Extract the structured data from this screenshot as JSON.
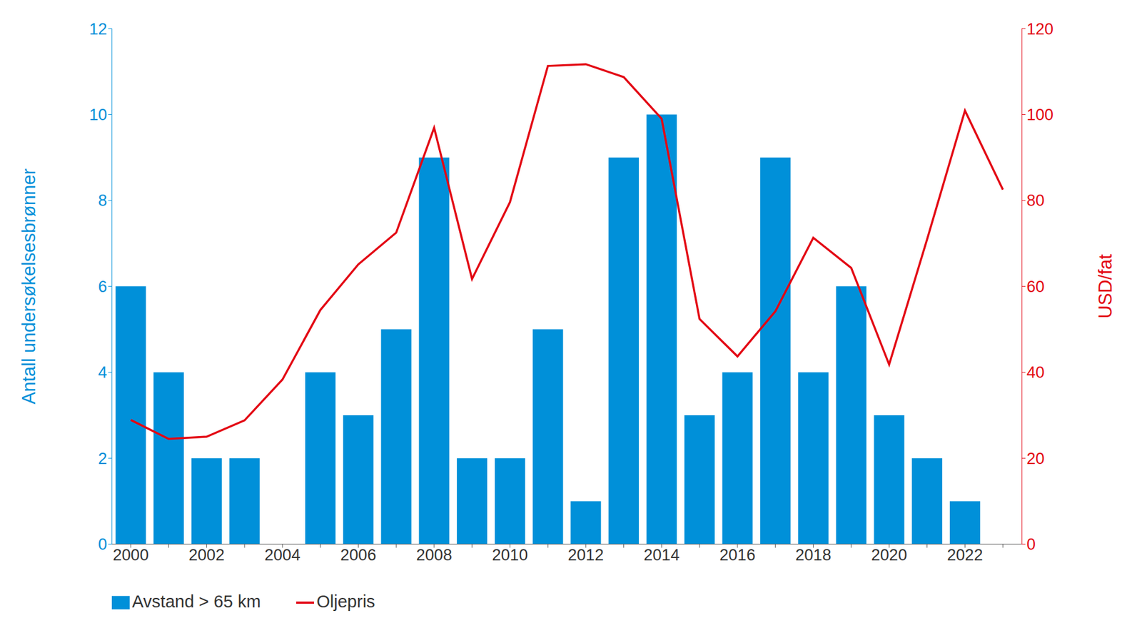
{
  "chart_data": {
    "type": "bar",
    "categories": [
      "2000",
      null,
      "2002",
      null,
      "2004",
      null,
      "2006",
      null,
      "2008",
      null,
      "2010",
      null,
      "2012",
      null,
      "2014",
      null,
      "2016",
      null,
      "2018",
      null,
      "2020",
      null,
      "2022",
      null
    ],
    "y_label": "Antall undersøkelsesbrønner",
    "y2_label": "USD/fat",
    "ylim": [
      0,
      12
    ],
    "yticks": [
      0,
      2,
      4,
      6,
      8,
      10,
      12
    ],
    "y2lim": [
      0,
      120
    ],
    "y2ticks": [
      0,
      20,
      40,
      60,
      80,
      100,
      120
    ],
    "grid": false,
    "legend": "bottom left",
    "series": [
      {
        "name": "Avstand > 65 km",
        "type": "bar",
        "color": "#0090d9",
        "values": [
          6,
          4,
          2,
          2,
          0,
          4,
          3,
          5,
          9,
          2,
          2,
          5,
          1,
          9,
          10,
          3,
          4,
          9,
          4,
          6,
          3,
          2,
          1,
          null
        ]
      },
      {
        "name": "Oljepris",
        "type": "line",
        "axis": "y2",
        "color": "#e30613",
        "values": [
          28.9,
          24.5,
          25.0,
          28.8,
          38.3,
          54.5,
          65.1,
          72.5,
          96.9,
          61.7,
          79.6,
          111.3,
          111.7,
          108.7,
          99.0,
          52.4,
          43.7,
          54.2,
          71.3,
          64.3,
          41.8,
          70.9,
          100.9,
          82.5
        ]
      }
    ]
  }
}
